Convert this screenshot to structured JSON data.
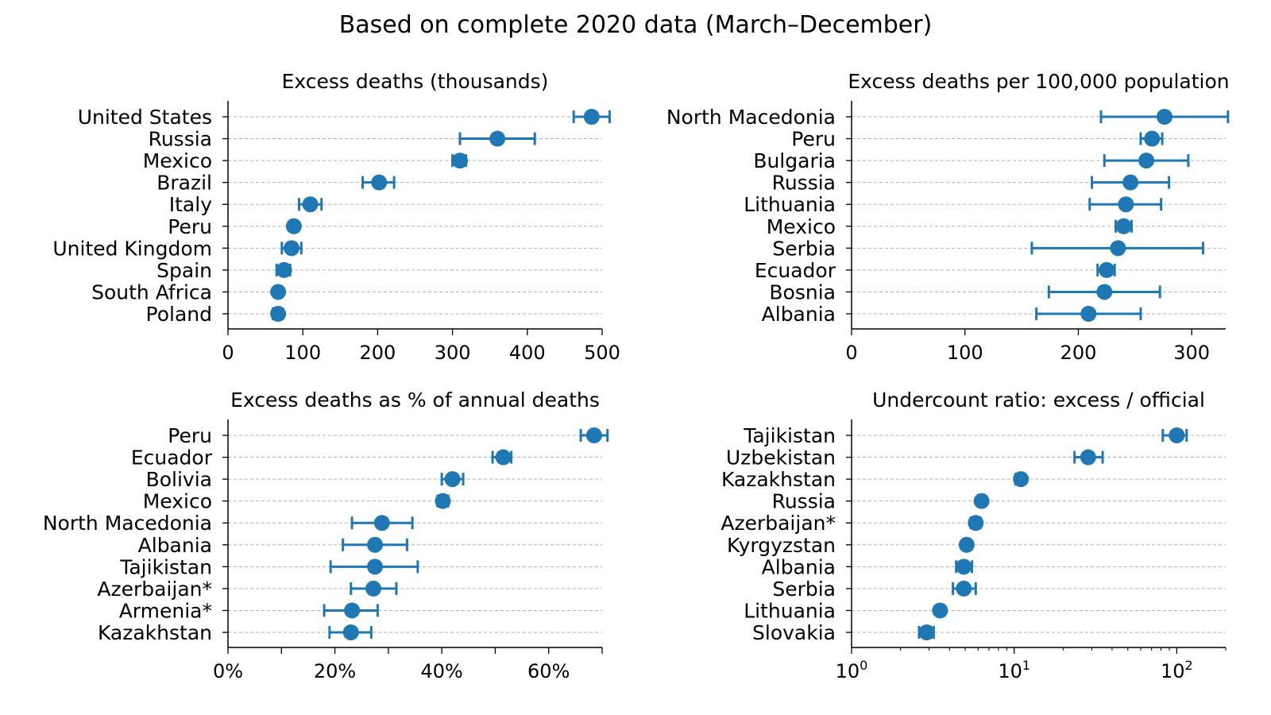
{
  "suptitle": "Based on complete 2020 data (March–December)",
  "colors": {
    "marker": "#1f77b4",
    "grid": "#b0b0b0",
    "axis": "#000000"
  },
  "chart_data": [
    {
      "type": "scatter",
      "title": "Excess deaths (thousands)",
      "xscale": "linear",
      "xlim": [
        0,
        500
      ],
      "xticks": [
        0,
        100,
        200,
        300,
        400,
        500
      ],
      "xtick_labels": [
        "0",
        "100",
        "200",
        "300",
        "400",
        "500"
      ],
      "grid": "horizontal dashed",
      "categories": [
        "United States",
        "Russia",
        "Mexico",
        "Brazil",
        "Italy",
        "Peru",
        "United Kingdom",
        "Spain",
        "South Africa",
        "Poland"
      ],
      "values": [
        486,
        360,
        310,
        202,
        110,
        88,
        85,
        75,
        67,
        67
      ],
      "err_low": [
        462,
        310,
        300,
        180,
        95,
        88,
        72,
        65,
        67,
        60
      ],
      "err_high": [
        510,
        410,
        318,
        222,
        125,
        88,
        98,
        83,
        67,
        73
      ]
    },
    {
      "type": "scatter",
      "title": "Excess deaths per 100,000 population",
      "xscale": "linear",
      "xlim": [
        0,
        330
      ],
      "xticks": [
        0,
        100,
        200,
        300
      ],
      "xtick_labels": [
        "0",
        "100",
        "200",
        "300"
      ],
      "grid": "horizontal dashed",
      "categories": [
        "North Macedonia",
        "Peru",
        "Bulgaria",
        "Russia",
        "Lithuania",
        "Mexico",
        "Serbia",
        "Ecuador",
        "Bosnia",
        "Albania"
      ],
      "values": [
        276,
        265,
        260,
        246,
        242,
        240,
        235,
        225,
        223,
        209
      ],
      "err_low": [
        220,
        255,
        223,
        212,
        210,
        233,
        159,
        217,
        174,
        163
      ],
      "err_high": [
        332,
        274,
        297,
        280,
        273,
        247,
        310,
        232,
        272,
        255
      ]
    },
    {
      "type": "scatter",
      "title": "Excess deaths as % of annual deaths",
      "xscale": "linear",
      "xlim": [
        0,
        70
      ],
      "xticks": [
        0,
        10,
        20,
        30,
        40,
        50,
        60,
        70
      ],
      "xtick_labels": [
        "0%",
        "",
        "20%",
        "",
        "40%",
        "",
        "60%",
        ""
      ],
      "grid": "horizontal dashed",
      "categories": [
        "Peru",
        "Ecuador",
        "Bolivia",
        "Mexico",
        "North Macedonia",
        "Albania",
        "Tajikistan",
        "Azerbaijan*",
        "Armenia*",
        "Kazakhstan"
      ],
      "values": [
        68.5,
        51.5,
        42,
        40.2,
        28.8,
        27.5,
        27.5,
        27.2,
        23.2,
        23
      ],
      "err_low": [
        66,
        49.5,
        40,
        39.2,
        23.2,
        21.5,
        19.2,
        23,
        18,
        19
      ],
      "err_high": [
        71,
        53,
        44,
        41.2,
        34.5,
        33.5,
        35.5,
        31.5,
        28,
        26.8
      ]
    },
    {
      "type": "scatter",
      "title": "Undercount ratio: excess / official",
      "xscale": "log",
      "xlim": [
        1,
        200
      ],
      "xticks": [
        1,
        10,
        100
      ],
      "xtick_labels": [
        "10|0",
        "10|1",
        "10|2"
      ],
      "grid": "horizontal dashed",
      "categories": [
        "Tajikistan",
        "Uzbekistan",
        "Kazakhstan",
        "Russia",
        "Azerbaijan*",
        "Kyrgyzstan",
        "Albania",
        "Serbia",
        "Lithuania",
        "Slovakia"
      ],
      "values": [
        100,
        28.5,
        11,
        6.3,
        5.8,
        5.1,
        4.9,
        4.9,
        3.5,
        2.9
      ],
      "err_low": [
        82,
        23.5,
        10.2,
        6,
        5.4,
        4.9,
        4.4,
        4.2,
        3.4,
        2.6
      ],
      "err_high": [
        115,
        35,
        11.6,
        6.6,
        6.2,
        5.4,
        5.5,
        5.8,
        3.7,
        3.2
      ]
    }
  ]
}
